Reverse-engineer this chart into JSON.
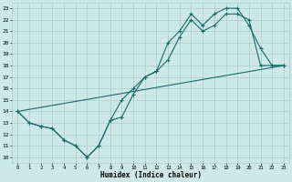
{
  "xlabel": "Humidex (Indice chaleur)",
  "bg_color": "#cce8e8",
  "grid_color": "#aacccc",
  "line_color": "#1a6b6b",
  "xlim": [
    -0.5,
    23.5
  ],
  "ylim": [
    9.5,
    23.5
  ],
  "xticks": [
    0,
    1,
    2,
    3,
    4,
    5,
    6,
    7,
    8,
    9,
    10,
    11,
    12,
    13,
    14,
    15,
    16,
    17,
    18,
    19,
    20,
    21,
    22,
    23
  ],
  "yticks": [
    10,
    11,
    12,
    13,
    14,
    15,
    16,
    17,
    18,
    19,
    20,
    21,
    22,
    23
  ],
  "line1_x": [
    0,
    1,
    2,
    3,
    4,
    5,
    6,
    7,
    8,
    9,
    10,
    11,
    12,
    13,
    14,
    15,
    16,
    17,
    18,
    19,
    20,
    21,
    22,
    23
  ],
  "line1_y": [
    14,
    13,
    12.7,
    12.5,
    11.5,
    11,
    10,
    11,
    13.2,
    13.5,
    15.5,
    17,
    17.5,
    18.5,
    20.5,
    22,
    21,
    21.5,
    22.5,
    22.5,
    22,
    18,
    18,
    18
  ],
  "line2_x": [
    0,
    1,
    2,
    3,
    4,
    5,
    6,
    7,
    8,
    9,
    10,
    11,
    12,
    13,
    14,
    15,
    16,
    17,
    18,
    19,
    20,
    21,
    22,
    23
  ],
  "line2_y": [
    14,
    13,
    12.7,
    12.5,
    11.5,
    11,
    10,
    11,
    13.2,
    15,
    16,
    17,
    17.5,
    20,
    21,
    22.5,
    21.5,
    22.5,
    23,
    23,
    21.5,
    19.5,
    18,
    18
  ],
  "line3_x": [
    0,
    23
  ],
  "line3_y": [
    14,
    18
  ]
}
